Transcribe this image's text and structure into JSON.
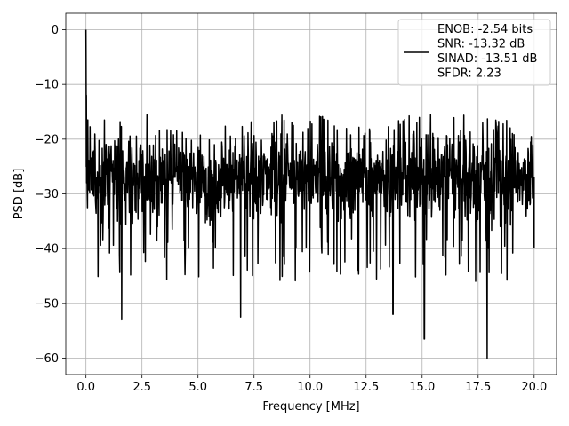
{
  "chart_data": {
    "type": "line",
    "title": "",
    "xlabel": "Frequency [MHz]",
    "ylabel": "PSD [dB]",
    "xlim": [
      -0.9,
      21.0
    ],
    "ylim": [
      -63,
      3
    ],
    "xticks": [
      0.0,
      2.5,
      5.0,
      7.5,
      10.0,
      12.5,
      15.0,
      17.5,
      20.0
    ],
    "xtick_labels": [
      "0.0",
      "2.5",
      "5.0",
      "7.5",
      "10.0",
      "12.5",
      "15.0",
      "17.5",
      "20.0"
    ],
    "yticks": [
      0,
      -10,
      -20,
      -30,
      -40,
      -50,
      -60
    ],
    "ytick_labels": [
      "0",
      "−10",
      "−20",
      "−30",
      "−40",
      "−50",
      "−60"
    ],
    "grid": true,
    "legend_position": "top-right",
    "series": [
      {
        "color": "#000000",
        "x_range": [
          0.0,
          20.0
        ],
        "peak": {
          "x": 0.0,
          "y": 0.0
        },
        "noise_floor_mean": -27,
        "noise_upper_envelope": -18,
        "noise_lower_envelope": -38,
        "notable_minima": [
          {
            "x": 1.6,
            "y": -53
          },
          {
            "x": 6.9,
            "y": -52.5
          },
          {
            "x": 13.7,
            "y": -52
          },
          {
            "x": 15.1,
            "y": -56.5
          },
          {
            "x": 17.9,
            "y": -60
          }
        ]
      }
    ],
    "legend": {
      "lines": [
        "ENOB: -2.54 bits",
        "SNR: -13.32 dB",
        "SINAD: -13.51 dB",
        "SFDR: 2.23"
      ]
    }
  }
}
